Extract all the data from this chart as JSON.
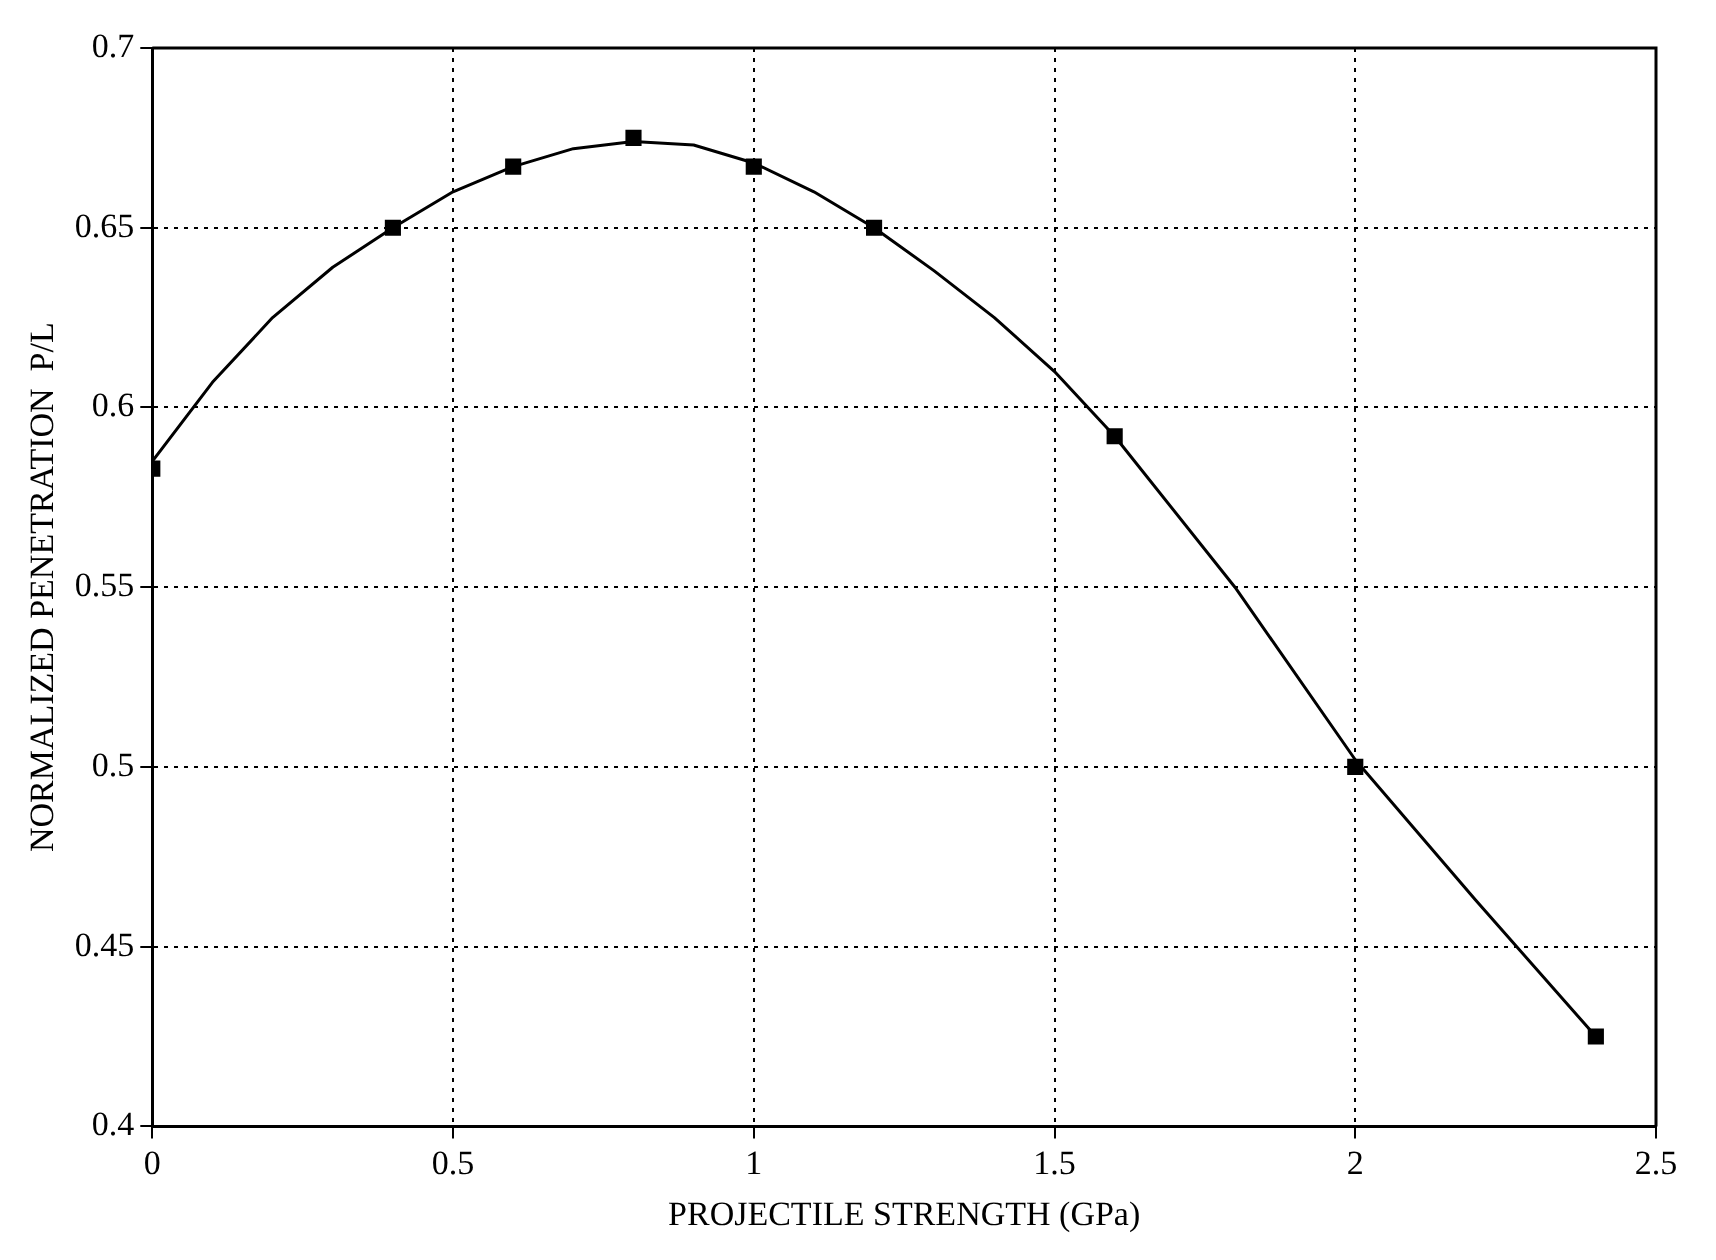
{
  "chart_data": {
    "type": "scatter",
    "xlabel": "PROJECTILE STRENGTH (GPa)",
    "ylabel": "NORMALIZED PENETRATION  P/L",
    "xlim": [
      0,
      2.5
    ],
    "ylim": [
      0.4,
      0.7
    ],
    "xticks": [
      0,
      0.5,
      1,
      1.5,
      2,
      2.5
    ],
    "yticks": [
      0.4,
      0.45,
      0.5,
      0.55,
      0.6,
      0.65,
      0.7
    ],
    "grid": true,
    "legend": false,
    "series": [
      {
        "type": "scatter",
        "color": "#000000",
        "marker": "square",
        "x": [
          0,
          0.4,
          0.6,
          0.8,
          1.0,
          1.2,
          1.6,
          2.0,
          2.4
        ],
        "values": [
          0.583,
          0.65,
          0.667,
          0.675,
          0.667,
          0.65,
          0.592,
          0.5,
          0.425
        ]
      },
      {
        "type": "line",
        "color": "#000000",
        "marker": "none",
        "line_style": "solid",
        "x": [
          0,
          0.1,
          0.2,
          0.3,
          0.4,
          0.5,
          0.6,
          0.7,
          0.8,
          0.9,
          1.0,
          1.1,
          1.2,
          1.3,
          1.4,
          1.5,
          1.6,
          1.8,
          2.0,
          2.2,
          2.4
        ],
        "values": [
          0.585,
          0.607,
          0.625,
          0.639,
          0.65,
          0.66,
          0.667,
          0.672,
          0.674,
          0.673,
          0.668,
          0.66,
          0.65,
          0.638,
          0.625,
          0.61,
          0.592,
          0.55,
          0.502,
          0.463,
          0.425
        ]
      }
    ]
  }
}
